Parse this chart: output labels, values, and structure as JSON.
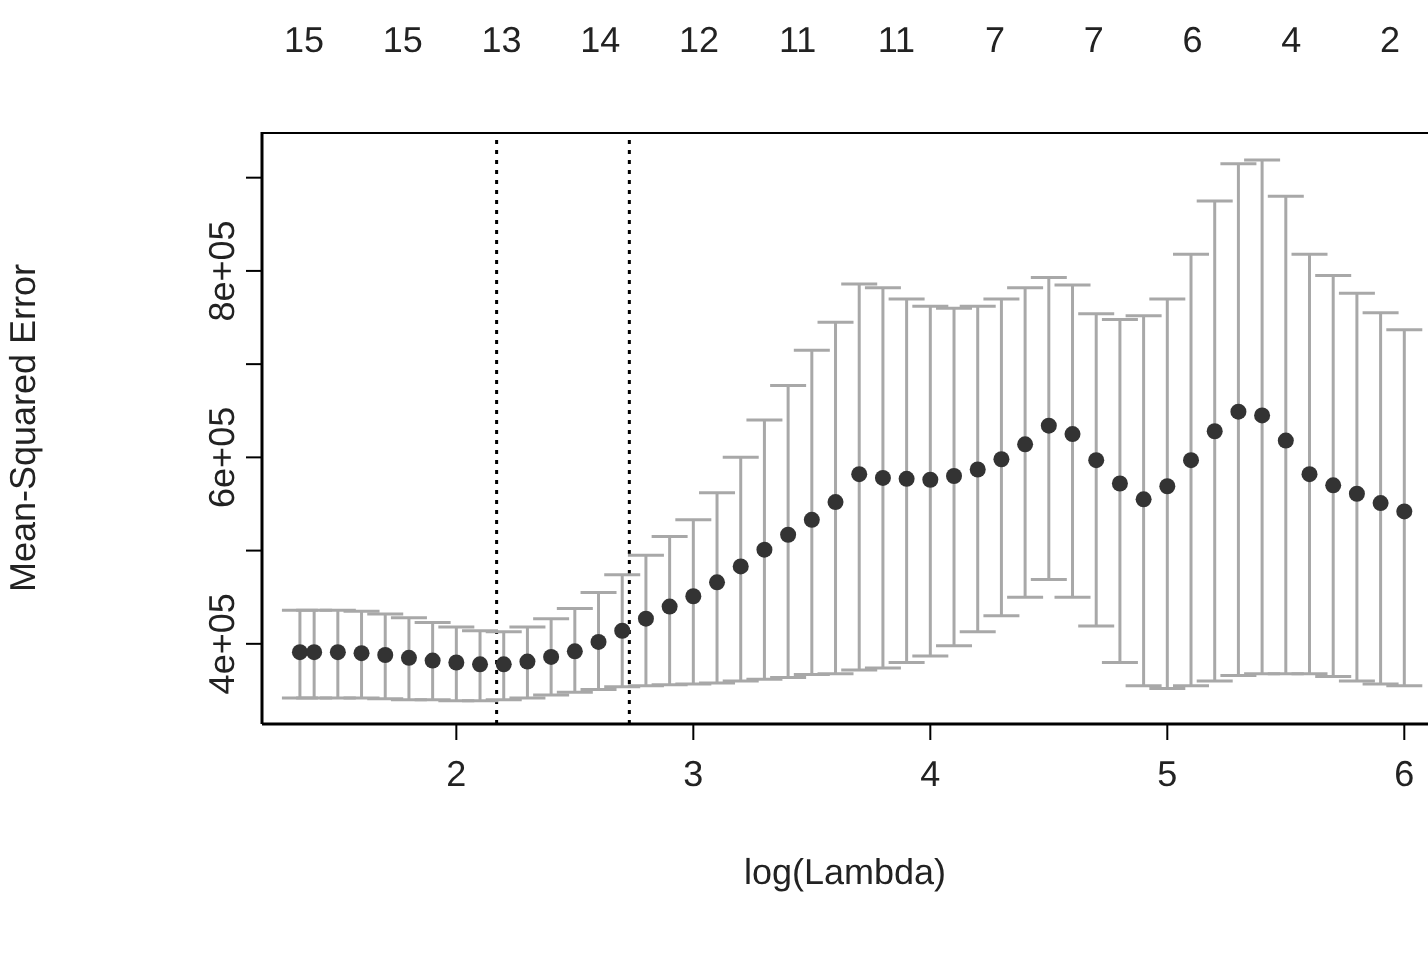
{
  "chart_data": {
    "type": "scatter",
    "xlabel": "log(Lambda)",
    "ylabel": "Mean-Squared Error",
    "marker": "circle",
    "grid": false,
    "xlim": [
      1.18,
      6.1
    ],
    "xticks": [
      2,
      3,
      4,
      5,
      6
    ],
    "annotations": [
      "15",
      "15",
      "13",
      "14",
      "12",
      "11",
      "11",
      "7",
      "7",
      "6",
      "4",
      "2"
    ],
    "ylim": [
      314000,
      949000
    ],
    "yticks": [
      {
        "value": 400000,
        "label": "4e+05"
      },
      {
        "value": 500000,
        "label": null
      },
      {
        "value": 600000,
        "label": "6e+05"
      },
      {
        "value": 700000,
        "label": null
      },
      {
        "value": 800000,
        "label": "8e+05"
      },
      {
        "value": 900000,
        "label": null
      }
    ],
    "ref_lines": [
      {
        "axis": "x",
        "value": 2.17,
        "color": "#000000",
        "line_style": "dotted"
      },
      {
        "axis": "x",
        "value": 2.73,
        "color": "#000000",
        "line_style": "dotted"
      }
    ],
    "series": [
      {
        "color": "#333333",
        "x": [
          1.34,
          1.4,
          1.5,
          1.6,
          1.7,
          1.8,
          1.9,
          2.0,
          2.1,
          2.2,
          2.3,
          2.4,
          2.5,
          2.6,
          2.7,
          2.8,
          2.9,
          3.0,
          3.1,
          3.2,
          3.3,
          3.4,
          3.5,
          3.6,
          3.7,
          3.8,
          3.9,
          4.0,
          4.1,
          4.2,
          4.3,
          4.4,
          4.5,
          4.6,
          4.7,
          4.8,
          4.9,
          5.0,
          5.1,
          5.2,
          5.3,
          5.4,
          5.5,
          5.6,
          5.7,
          5.8,
          5.9,
          6.0
        ],
        "values": [
          391000,
          391000,
          391000,
          390000,
          388000,
          385000,
          382000,
          380000,
          378000,
          378000,
          381000,
          386000,
          392000,
          402000,
          414000,
          427000,
          440000,
          451000,
          466000,
          483000,
          501000,
          517000,
          533000,
          552000,
          582000,
          578000,
          577000,
          576000,
          580000,
          587000,
          598000,
          614000,
          634000,
          625000,
          597000,
          572000,
          555000,
          569000,
          597000,
          628000,
          649000,
          645000,
          618000,
          582000,
          570000,
          561000,
          551000,
          542000
        ],
        "errors": [
          [
            342000,
            436000
          ],
          [
            342000,
            436000
          ],
          [
            342000,
            436000
          ],
          [
            342000,
            435000
          ],
          [
            341000,
            432000
          ],
          [
            340000,
            428000
          ],
          [
            340000,
            423000
          ],
          [
            339000,
            418000
          ],
          [
            339000,
            414000
          ],
          [
            340000,
            413000
          ],
          [
            342000,
            418000
          ],
          [
            345000,
            427000
          ],
          [
            348000,
            438000
          ],
          [
            351000,
            455000
          ],
          [
            354000,
            474000
          ],
          [
            355000,
            495000
          ],
          [
            356000,
            515000
          ],
          [
            357000,
            533000
          ],
          [
            358000,
            562000
          ],
          [
            360000,
            600000
          ],
          [
            362000,
            640000
          ],
          [
            364000,
            677000
          ],
          [
            367000,
            715000
          ],
          [
            368000,
            745000
          ],
          [
            372000,
            786000
          ],
          [
            374000,
            782000
          ],
          [
            380000,
            770000
          ],
          [
            387000,
            762000
          ],
          [
            398000,
            760000
          ],
          [
            413000,
            762000
          ],
          [
            430000,
            770000
          ],
          [
            450000,
            782000
          ],
          [
            469000,
            793000
          ],
          [
            450000,
            785000
          ],
          [
            419000,
            754000
          ],
          [
            380000,
            748000
          ],
          [
            355000,
            752000
          ],
          [
            352000,
            770000
          ],
          [
            355000,
            818000
          ],
          [
            360000,
            875000
          ],
          [
            366000,
            915000
          ],
          [
            368000,
            919000
          ],
          [
            368000,
            880000
          ],
          [
            368000,
            818000
          ],
          [
            365000,
            795000
          ],
          [
            360000,
            776000
          ],
          [
            357000,
            755000
          ],
          [
            355000,
            737000
          ]
        ]
      }
    ]
  }
}
